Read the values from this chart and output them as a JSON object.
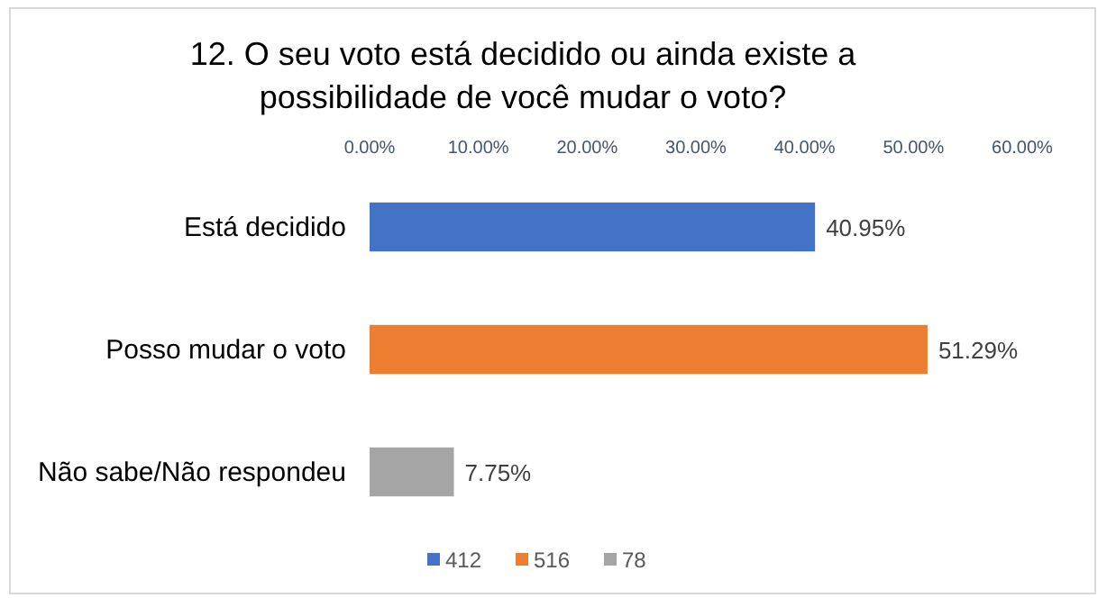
{
  "chart_data": {
    "type": "bar",
    "orientation": "horizontal",
    "title": "12. O seu voto está decidido ou ainda existe a\npossibilidade de você mudar o voto?",
    "categories": [
      "Está decidido",
      "Posso mudar o voto",
      "Não sabe/Não respondeu"
    ],
    "series": [
      {
        "name": "412",
        "color": "#4472c4",
        "values": [
          40.95,
          null,
          null
        ],
        "value_labels": [
          "40.95%",
          null,
          null
        ]
      },
      {
        "name": "516",
        "color": "#ed7d31",
        "values": [
          null,
          51.29,
          null
        ],
        "value_labels": [
          null,
          "51.29%",
          null
        ]
      },
      {
        "name": "78",
        "color": "#a5a5a5",
        "values": [
          null,
          null,
          7.75
        ],
        "value_labels": [
          null,
          null,
          "7.75%"
        ]
      }
    ],
    "xlim": [
      0,
      60
    ],
    "xticks": [
      {
        "value": 0,
        "label": "0.00%"
      },
      {
        "value": 10,
        "label": "10.00%"
      },
      {
        "value": 20,
        "label": "20.00%"
      },
      {
        "value": 30,
        "label": "30.00%"
      },
      {
        "value": 40,
        "label": "40.00%"
      },
      {
        "value": 50,
        "label": "50.00%"
      },
      {
        "value": 60,
        "label": "60.00%"
      }
    ],
    "legend": "bottom"
  }
}
